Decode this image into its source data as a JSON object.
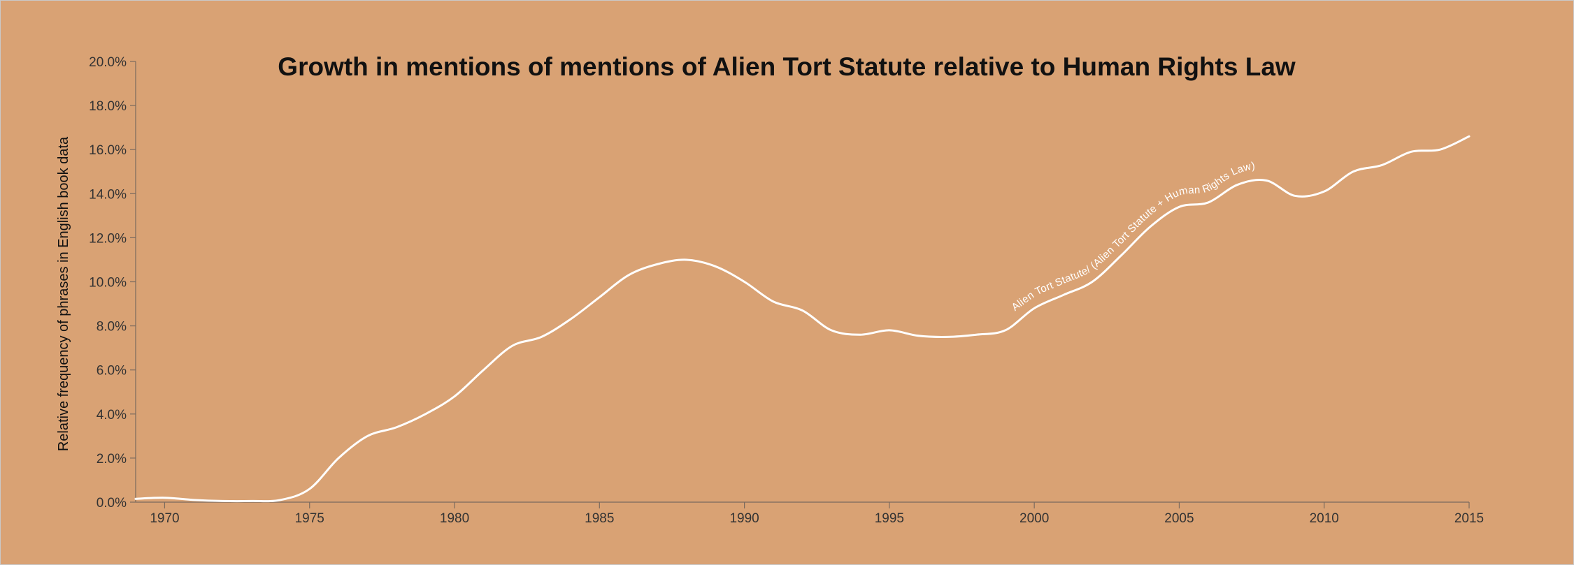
{
  "chart_data": {
    "type": "line",
    "title": "Growth in mentions of mentions of Alien Tort Statute relative to Human Rights Law",
    "xlabel": "",
    "ylabel": "Relative frequency of phrases in English book data",
    "xlim": [
      1969,
      2015
    ],
    "ylim": [
      0,
      20
    ],
    "x_ticks": [
      "1970",
      "1975",
      "1980",
      "1985",
      "1990",
      "1995",
      "2000",
      "2005",
      "2010",
      "2015"
    ],
    "y_ticks": [
      "0.0%",
      "2.0%",
      "4.0%",
      "6.0%",
      "8.0%",
      "10.0%",
      "12.0%",
      "14.0%",
      "16.0%",
      "18.0%",
      "20.0%"
    ],
    "grid": false,
    "legend": "none",
    "series": [
      {
        "name": "Alien Tort Statute/ (Alien Tort Statute + Human Rights Law)",
        "color": "#ffffff",
        "x": [
          1969,
          1970,
          1971,
          1972,
          1973,
          1974,
          1975,
          1976,
          1977,
          1978,
          1979,
          1980,
          1981,
          1982,
          1983,
          1984,
          1985,
          1986,
          1987,
          1988,
          1989,
          1990,
          1991,
          1992,
          1993,
          1994,
          1995,
          1996,
          1997,
          1998,
          1999,
          2000,
          2001,
          2002,
          2003,
          2004,
          2005,
          2006,
          2007,
          2008,
          2009,
          2010,
          2011,
          2012,
          2013,
          2014,
          2015
        ],
        "y": [
          0.15,
          0.2,
          0.1,
          0.05,
          0.05,
          0.1,
          0.6,
          2.0,
          3.0,
          3.4,
          4.0,
          4.8,
          6.0,
          7.1,
          7.5,
          8.3,
          9.3,
          10.3,
          10.8,
          11.0,
          10.7,
          10.0,
          9.1,
          8.7,
          7.8,
          7.6,
          7.8,
          7.55,
          7.5,
          7.6,
          7.8,
          8.8,
          9.4,
          10.0,
          11.2,
          12.5,
          13.4,
          13.6,
          14.4,
          14.6,
          13.9,
          14.1,
          15.0,
          15.3,
          15.9,
          16.0,
          16.6
        ]
      }
    ]
  }
}
